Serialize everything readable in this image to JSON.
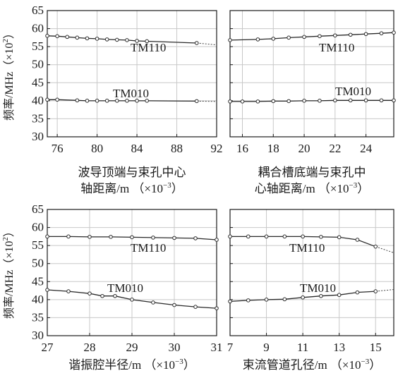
{
  "y_axis_label": {
    "text": "频率/MHz",
    "unit_prefix": "（×10",
    "unit_exp": "2",
    "unit_suffix": "）"
  },
  "chart_data": [
    {
      "type": "line",
      "xlabel_line1": "波导顶端与束孔中心",
      "xlabel_line2": "轴距离/m",
      "xscale_prefix": "（×10",
      "xscale_exp": "−3",
      "xscale_suffix": "）",
      "xlim": [
        75,
        92
      ],
      "ylim": [
        30,
        65
      ],
      "xticks": [
        76,
        80,
        84,
        88,
        92
      ],
      "yticks": [
        30,
        35,
        40,
        45,
        50,
        55,
        60,
        65
      ],
      "grid": true,
      "series": [
        {
          "name": "TM110",
          "x": [
            75,
            76,
            77,
            78,
            79,
            80,
            81,
            82,
            83,
            84,
            85,
            90
          ],
          "y": [
            58.0,
            57.9,
            57.7,
            57.5,
            57.3,
            57.2,
            57.0,
            56.9,
            56.8,
            56.6,
            56.5,
            56.0
          ],
          "trend_end": [
            92,
            55.5
          ]
        },
        {
          "name": "TM010",
          "x": [
            75,
            76,
            78,
            79,
            80,
            81,
            82,
            83,
            84,
            85,
            90
          ],
          "y": [
            40.3,
            40.3,
            40.1,
            40.0,
            40.0,
            40.0,
            40.0,
            40.0,
            40.0,
            40.0,
            39.9
          ],
          "trend_end": [
            92,
            39.8
          ]
        }
      ]
    },
    {
      "type": "line",
      "xlabel_line1": "耦合槽底端与束孔中",
      "xlabel_line2": "心轴距离/m",
      "xscale_prefix": "（×10",
      "xscale_exp": "−3",
      "xscale_suffix": "）",
      "xlim": [
        15.2,
        25.8
      ],
      "ylim": [
        30,
        65
      ],
      "xticks": [
        16,
        18,
        20,
        22,
        24
      ],
      "yticks": [
        30,
        35,
        40,
        45,
        50,
        55,
        60,
        65
      ],
      "grid": true,
      "series": [
        {
          "name": "TM110",
          "x": [
            15.2,
            17,
            18,
            19,
            20,
            21,
            22,
            23,
            24,
            25,
            25.8
          ],
          "y": [
            56.8,
            57.0,
            57.2,
            57.5,
            57.7,
            57.9,
            58.1,
            58.3,
            58.5,
            58.7,
            58.9
          ],
          "trend_end": null
        },
        {
          "name": "TM010",
          "x": [
            15.2,
            16,
            17,
            18,
            19,
            20,
            21,
            22,
            23,
            24,
            25,
            25.8
          ],
          "y": [
            39.8,
            39.8,
            39.8,
            39.9,
            39.9,
            40.0,
            40.0,
            40.1,
            40.1,
            40.1,
            40.1,
            40.1
          ],
          "trend_end": null
        }
      ]
    },
    {
      "type": "line",
      "xlabel_line1": "谐振腔半径/m",
      "xlabel_line2": "",
      "xscale_prefix": "（×10",
      "xscale_exp": "−3",
      "xscale_suffix": "）",
      "xlim": [
        27,
        31
      ],
      "ylim": [
        30,
        65
      ],
      "xticks": [
        27,
        28,
        29,
        30,
        31
      ],
      "yticks": [
        30,
        35,
        40,
        45,
        50,
        55,
        60,
        65
      ],
      "grid": true,
      "series": [
        {
          "name": "TM110",
          "x": [
            27,
            27.5,
            28,
            28.5,
            29,
            29.5,
            30,
            30.5,
            31
          ],
          "y": [
            57.5,
            57.5,
            57.4,
            57.4,
            57.3,
            57.2,
            57.1,
            57.0,
            56.6
          ],
          "trend_end": null
        },
        {
          "name": "TM010",
          "x": [
            27,
            27.5,
            28,
            28.3,
            28.6,
            29,
            29.5,
            30,
            30.5,
            31
          ],
          "y": [
            42.7,
            42.3,
            41.7,
            41.0,
            41.0,
            40.0,
            39.2,
            38.5,
            38.0,
            37.6
          ],
          "trend_end": null
        }
      ]
    },
    {
      "type": "line",
      "xlabel_line1": "束流管道孔径/m",
      "xlabel_line2": "",
      "xscale_prefix": "（×10",
      "xscale_exp": "−3",
      "xscale_suffix": "）",
      "xlim": [
        7,
        16
      ],
      "ylim": [
        30,
        65
      ],
      "xticks": [
        7,
        9,
        11,
        13,
        15
      ],
      "yticks": [
        30,
        35,
        40,
        45,
        50,
        55,
        60,
        65
      ],
      "grid": true,
      "series": [
        {
          "name": "TM110",
          "x": [
            7,
            8,
            9,
            10,
            11,
            12,
            13,
            14,
            15
          ],
          "y": [
            57.5,
            57.5,
            57.5,
            57.5,
            57.5,
            57.4,
            57.3,
            56.6,
            54.7
          ],
          "trend_end": [
            16,
            53.0
          ]
        },
        {
          "name": "TM010",
          "x": [
            7,
            8,
            9,
            10,
            11,
            12,
            13,
            14,
            15
          ],
          "y": [
            39.5,
            39.8,
            40.0,
            40.1,
            40.6,
            41.0,
            41.3,
            42.0,
            42.3
          ],
          "trend_end": [
            16,
            42.8
          ]
        }
      ]
    }
  ]
}
